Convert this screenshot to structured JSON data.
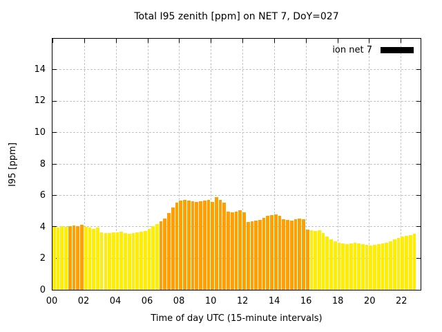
{
  "title": "Total I95 zenith [ppm] on NET 7, DoY=027",
  "legend": {
    "label": "ion net 7",
    "swatch_color": "#000000"
  },
  "axes": {
    "xlabel": "Time of day UTC (15-minute intervals)",
    "ylabel": "I95 [ppm]",
    "x_ticks": [
      "00",
      "02",
      "04",
      "06",
      "08",
      "10",
      "12",
      "14",
      "16",
      "18",
      "20",
      "22"
    ],
    "x_tick_values": [
      0,
      2,
      4,
      6,
      8,
      10,
      12,
      14,
      16,
      18,
      20,
      22
    ],
    "y_ticks": [
      0,
      2,
      4,
      6,
      8,
      10,
      12,
      14
    ],
    "xlim": [
      0,
      23.25
    ],
    "ylim": [
      0,
      16
    ],
    "grid": "dashed"
  },
  "chart_data": {
    "type": "bar",
    "title": "Total I95 zenith [ppm] on NET 7, DoY=027",
    "xlabel": "Time of day UTC (15-minute intervals)",
    "ylabel": "I95 [ppm]",
    "x_start_hour": 0,
    "interval_minutes": 15,
    "values": [
      4.0,
      3.95,
      4.05,
      4.0,
      4.05,
      4.1,
      4.05,
      4.15,
      4.0,
      3.95,
      3.9,
      3.95,
      3.65,
      3.6,
      3.6,
      3.65,
      3.65,
      3.7,
      3.6,
      3.55,
      3.6,
      3.65,
      3.7,
      3.75,
      3.9,
      4.05,
      4.2,
      4.35,
      4.55,
      4.9,
      5.25,
      5.55,
      5.7,
      5.75,
      5.7,
      5.65,
      5.6,
      5.65,
      5.7,
      5.75,
      5.6,
      5.9,
      5.75,
      5.55,
      5.0,
      4.95,
      5.0,
      5.05,
      4.95,
      4.3,
      4.35,
      4.4,
      4.45,
      4.6,
      4.7,
      4.75,
      4.8,
      4.7,
      4.5,
      4.45,
      4.4,
      4.5,
      4.55,
      4.5,
      3.85,
      3.8,
      3.75,
      3.8,
      3.6,
      3.4,
      3.2,
      3.1,
      3.0,
      2.95,
      2.9,
      2.95,
      3.0,
      2.95,
      2.9,
      2.85,
      2.8,
      2.85,
      2.9,
      2.95,
      3.0,
      3.1,
      3.2,
      3.3,
      3.4,
      3.45,
      3.5,
      3.55
    ],
    "colors": "yyyyooooyyyyyyyyyyyyyyyyyyyooooooooooooooooooooooooooooooooooooooyyyyyyyyyyyyyyyyyyyyyyyyyyyy",
    "palette": {
      "y": "#ffee00",
      "o": "#ffa000"
    },
    "legend_entries": [
      "ion net 7"
    ],
    "legend_position": "top-right"
  }
}
